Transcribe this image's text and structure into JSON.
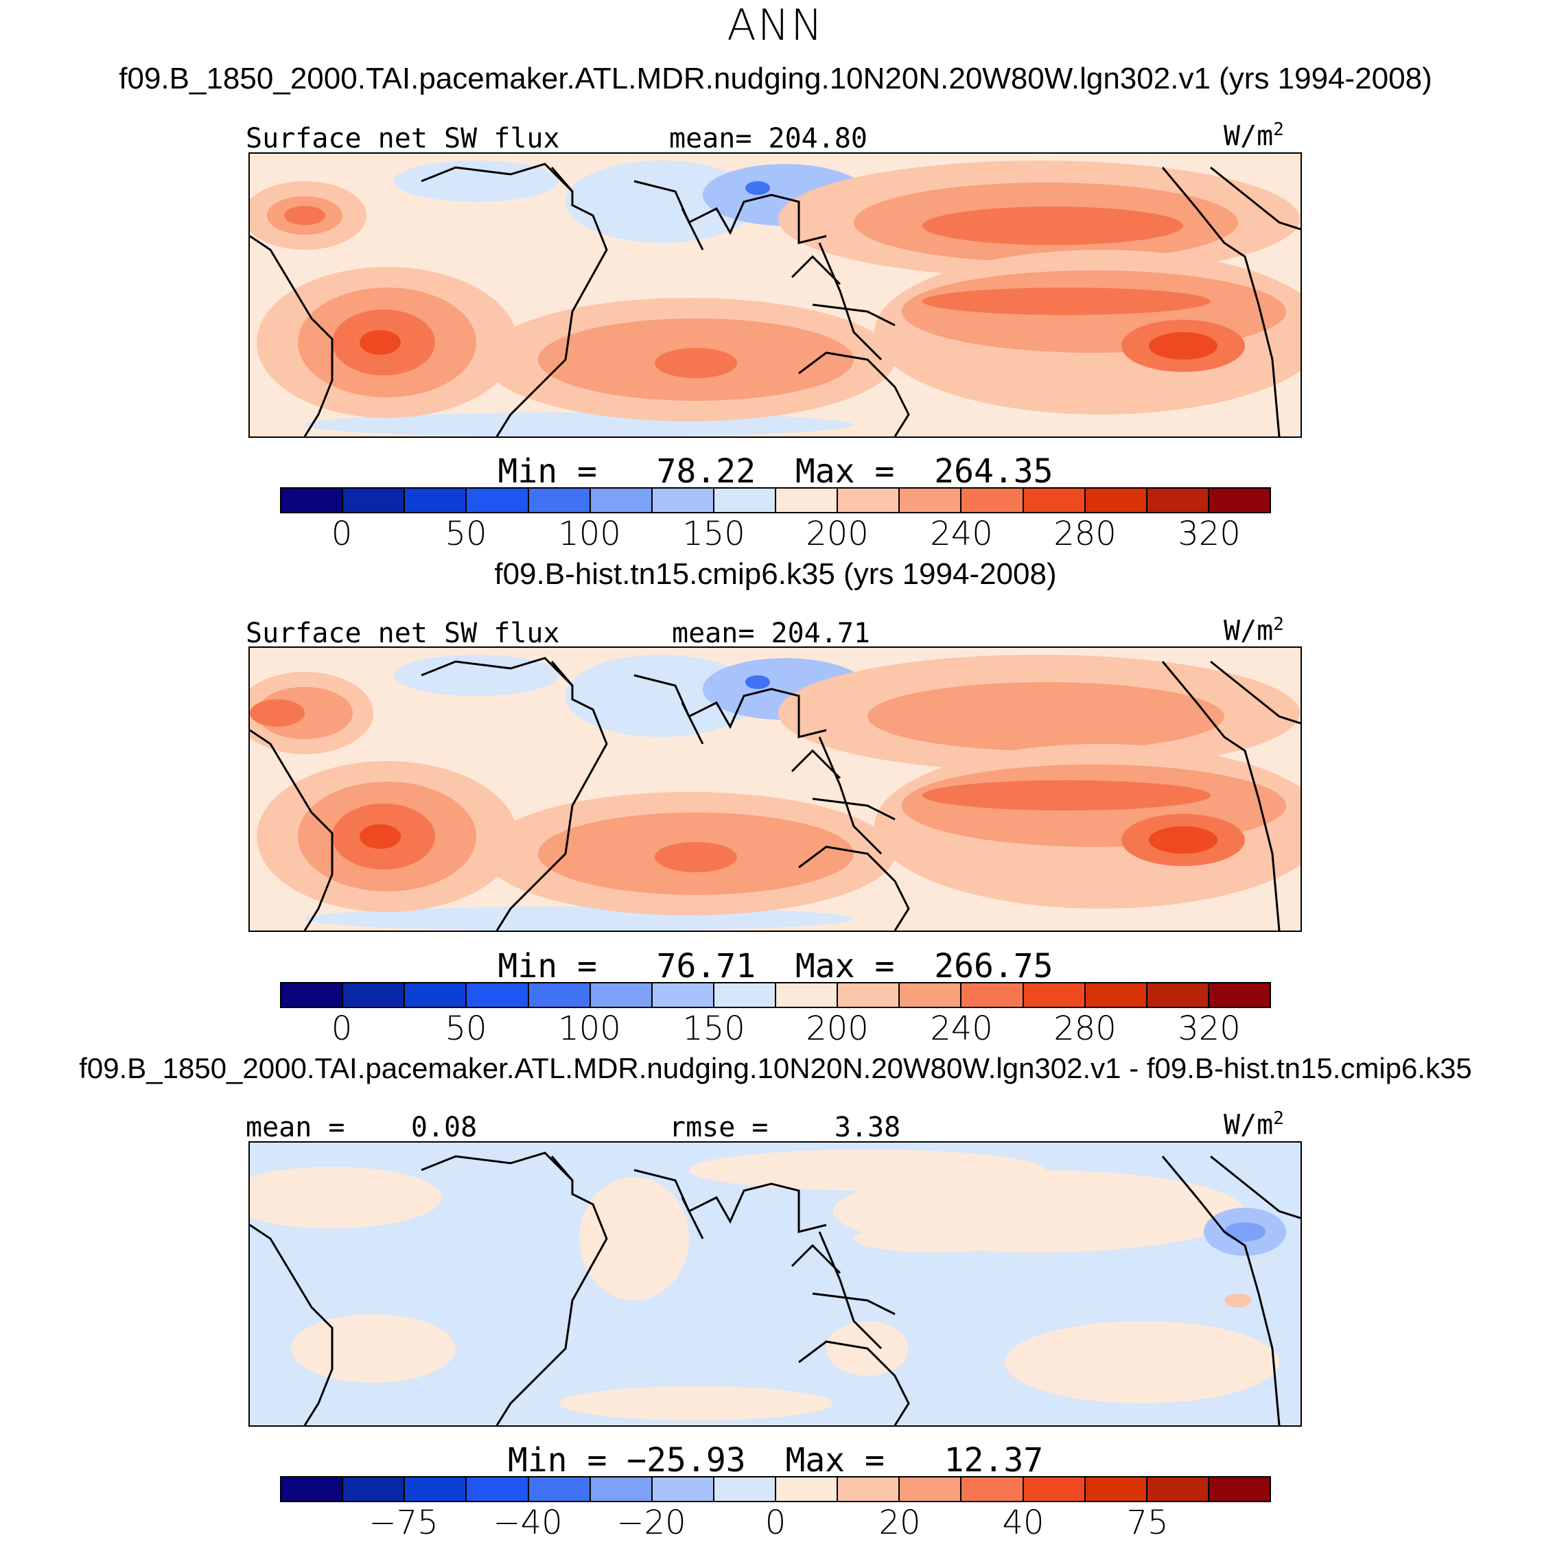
{
  "figure_title": "ANN",
  "colors": {
    "abs_scale": [
      "#08037c",
      "#0826a8",
      "#0b3fd6",
      "#1f56f2",
      "#3f73f4",
      "#7ea1f8",
      "#a8c2fb",
      "#d6e6fb",
      "#fde9d9",
      "#fcc6aa",
      "#f9a07c",
      "#f6774f",
      "#ef4a1f",
      "#d83207",
      "#b82208",
      "#8e0408"
    ],
    "continent_outline": "#000000"
  },
  "panels": [
    {
      "case_title": "f09.B_1850_2000.TAI.pacemaker.ATL.MDR.nudging.10N20N.20W80W.lgn302.v1 (yrs 1994-2008)",
      "left_label": "Surface net SW flux",
      "center_label": "mean= 204.80",
      "units_base": "W/m",
      "units_exp": "2",
      "min_max": "Min =   78.22  Max =  264.35",
      "colorbar_ticks": [
        "0",
        "50",
        "100",
        "150",
        "200",
        "240",
        "280",
        "320"
      ]
    },
    {
      "case_title": "f09.B-hist.tn15.cmip6.k35 (yrs 1994-2008)",
      "left_label": "Surface net SW flux",
      "center_label": "mean= 204.71",
      "units_base": "W/m",
      "units_exp": "2",
      "min_max": "Min =   76.71  Max =  266.75",
      "colorbar_ticks": [
        "0",
        "50",
        "100",
        "150",
        "200",
        "240",
        "280",
        "320"
      ]
    },
    {
      "case_title": "f09.B_1850_2000.TAI.pacemaker.ATL.MDR.nudging.10N20N.20W80W.lgn302.v1 - f09.B-hist.tn15.cmip6.k35",
      "left_label": "mean =    0.08",
      "center_label": "rmse =    3.38",
      "units_base": "W/m",
      "units_exp": "2",
      "min_max": "Min = −25.93  Max =   12.37",
      "colorbar_ticks": [
        "−75",
        "−40",
        "−20",
        "0",
        "20",
        "40",
        "75"
      ]
    }
  ]
}
